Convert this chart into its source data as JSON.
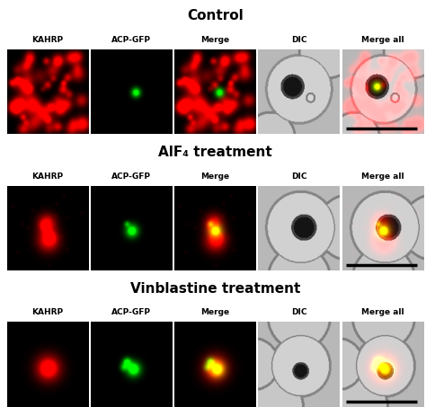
{
  "title_control": "Control",
  "title_alf4": "AlF₄ treatment",
  "title_vinblastine": "Vinblastine treatment",
  "col_labels": [
    "KAHRP",
    "ACP-GFP",
    "Merge",
    "DIC",
    "Merge all"
  ],
  "figure_width": 4.74,
  "figure_height": 4.53,
  "dpi": 100,
  "bg_color": "#ffffff",
  "text_color": "#000000",
  "title_fontsize": 11,
  "label_fontsize": 6.5
}
